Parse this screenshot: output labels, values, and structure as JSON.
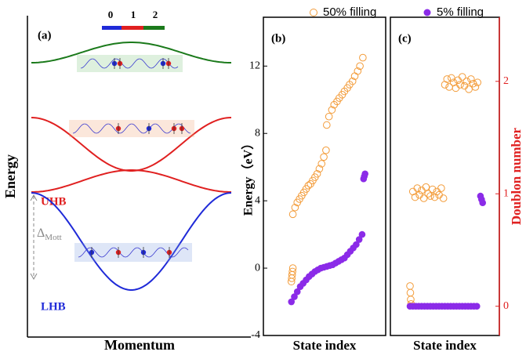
{
  "diagram": {
    "panel_label": "(a)",
    "site_labels": [
      "0",
      "1",
      "2"
    ],
    "ylabel": "Energy",
    "xlabel": "Momentum",
    "upper_band": "UHB",
    "lower_band": "LHB",
    "gap": "Δ",
    "gap_subscript": "Mott"
  },
  "chart_data": [
    {
      "type": "scatter",
      "panel_label": "(b)",
      "ylabel": "Energy（eV）",
      "xlabel": "State index",
      "xlim": [
        -38,
        128
      ],
      "ylim": [
        -4,
        14.9
      ],
      "yticks": [
        -4,
        0,
        4,
        8,
        12
      ],
      "series": [
        {
          "name": "50% filling",
          "color": "#f39c3a",
          "marker": "open",
          "x": [
            0,
            0.5,
            1,
            1.5,
            2,
            2,
            5,
            8,
            11,
            14,
            17,
            20,
            23,
            26,
            29,
            32,
            35,
            38,
            41,
            44,
            47,
            48,
            51,
            55,
            58,
            62,
            65,
            69,
            72,
            76,
            79,
            83,
            86,
            90,
            93,
            97
          ],
          "values": [
            -0.8,
            -0.6,
            -0.4,
            -0.2,
            0,
            3.2,
            3.6,
            3.9,
            4.1,
            4.3,
            4.5,
            4.7,
            4.9,
            5.0,
            5.2,
            5.4,
            5.6,
            5.9,
            6.2,
            6.6,
            7.0,
            8.5,
            9.0,
            9.4,
            9.7,
            9.9,
            10.1,
            10.3,
            10.5,
            10.7,
            10.9,
            11.1,
            11.4,
            11.7,
            12.0,
            12.5
          ]
        },
        {
          "name": "5% filling",
          "color": "#8b2be8",
          "marker": "filled",
          "x": [
            0,
            4,
            8,
            12,
            16,
            20,
            24,
            28,
            32,
            36,
            40,
            44,
            48,
            52,
            56,
            60,
            64,
            68,
            72,
            76,
            80,
            84,
            88,
            92,
            96,
            98,
            99,
            100
          ],
          "values": [
            -2.0,
            -1.7,
            -1.4,
            -1.1,
            -0.9,
            -0.7,
            -0.5,
            -0.35,
            -0.2,
            -0.1,
            0,
            0.05,
            0.1,
            0.15,
            0.2,
            0.3,
            0.4,
            0.5,
            0.6,
            0.8,
            1.0,
            1.2,
            1.4,
            1.7,
            2.0,
            5.3,
            5.45,
            5.6
          ]
        }
      ]
    },
    {
      "type": "scatter",
      "panel_label": "(c)",
      "xlabel": "State index",
      "y2label": "Doublon number",
      "xlim": [
        -27,
        123
      ],
      "y2lim": [
        -0.26,
        2.57
      ],
      "y2ticks": [
        0,
        1,
        2
      ],
      "axis_color": "#e02020",
      "series": [
        {
          "color": "#f39c3a",
          "marker": "open",
          "axis": "y2",
          "x": [
            0,
            0.5,
            1,
            1.5,
            4,
            7,
            10,
            13,
            16,
            19,
            22,
            25,
            28,
            31,
            34,
            37,
            40,
            43,
            46,
            48,
            51,
            54,
            57,
            60,
            63,
            66,
            69,
            72,
            75,
            78,
            81,
            84,
            87,
            90,
            93
          ],
          "values": [
            0.18,
            0.12,
            0.06,
            0.02,
            1.02,
            0.97,
            1.05,
            0.99,
            1.03,
            0.96,
            1.06,
            1.0,
            0.98,
            1.04,
            0.97,
            1.02,
            0.99,
            1.05,
            0.96,
            1.97,
            2.02,
            1.95,
            2.03,
            1.99,
            1.94,
            2.01,
            1.97,
            2.04,
            1.96,
            2.0,
            1.93,
            2.02,
            1.98,
            1.95,
            1.99
          ]
        },
        {
          "color": "#8b2be8",
          "marker": "filled",
          "axis": "y2",
          "x": [
            0,
            4,
            8,
            12,
            16,
            20,
            24,
            28,
            32,
            36,
            40,
            44,
            48,
            52,
            56,
            60,
            64,
            68,
            72,
            76,
            80,
            84,
            88,
            92,
            97,
            98.5,
            100
          ],
          "values": [
            0,
            0,
            0,
            0,
            0,
            0,
            0,
            0,
            0,
            0,
            0,
            0,
            0,
            0,
            0,
            0,
            0,
            0,
            0,
            0,
            0,
            0,
            0,
            0,
            0.98,
            0.95,
            0.92
          ]
        }
      ]
    }
  ]
}
